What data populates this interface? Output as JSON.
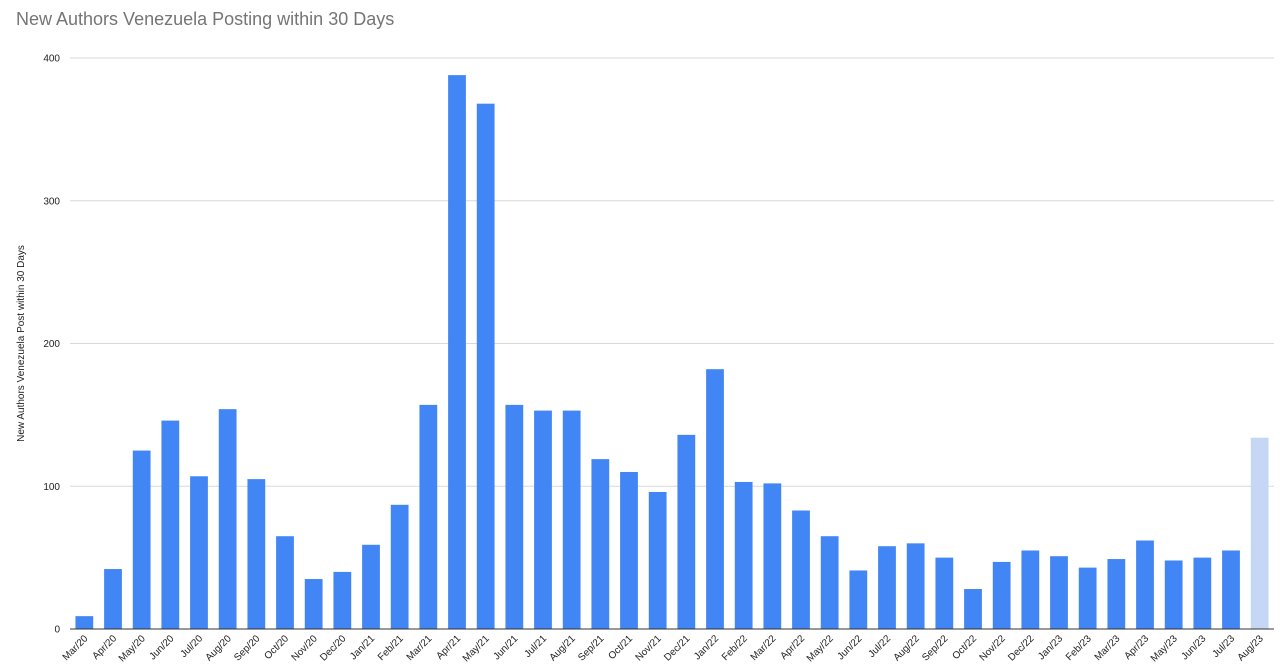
{
  "chart_data": {
    "type": "bar",
    "title": "New Authors Venezuela Posting within 30 Days",
    "xlabel": "",
    "ylabel": "New Authors Venezuela Post within 30 Days",
    "ylim": [
      0,
      400
    ],
    "yticks": [
      0,
      100,
      200,
      300,
      400
    ],
    "grid": true,
    "categories": [
      "Mar/20",
      "Apr/20",
      "May/20",
      "Jun/20",
      "Jul/20",
      "Aug/20",
      "Sep/20",
      "Oct/20",
      "Nov/20",
      "Dec/20",
      "Jan/21",
      "Feb/21",
      "Mar/21",
      "Apr/21",
      "May/21",
      "Jun/21",
      "Jul/21",
      "Aug/21",
      "Sep/21",
      "Oct/21",
      "Nov/21",
      "Dec/21",
      "Jan/22",
      "Feb/22",
      "Mar/22",
      "Apr/22",
      "May/22",
      "Jun/22",
      "Jul/22",
      "Aug/22",
      "Sep/22",
      "Oct/22",
      "Nov/22",
      "Dec/22",
      "Jan/23",
      "Feb/23",
      "Mar/23",
      "Apr/23",
      "May/23",
      "Jun/23",
      "Jul/23",
      "Aug/23"
    ],
    "values": [
      9,
      42,
      125,
      146,
      107,
      154,
      105,
      65,
      35,
      40,
      59,
      87,
      157,
      388,
      368,
      157,
      153,
      153,
      119,
      110,
      96,
      136,
      182,
      103,
      102,
      83,
      65,
      41,
      58,
      60,
      50,
      28,
      47,
      55,
      51,
      43,
      49,
      62,
      48,
      50,
      55,
      134
    ],
    "colors": {
      "bar": "#4285f4",
      "highlight": "#c6d7f5",
      "grid": "#d9d9d9",
      "axis": "#333333"
    },
    "highlight_last": true
  }
}
